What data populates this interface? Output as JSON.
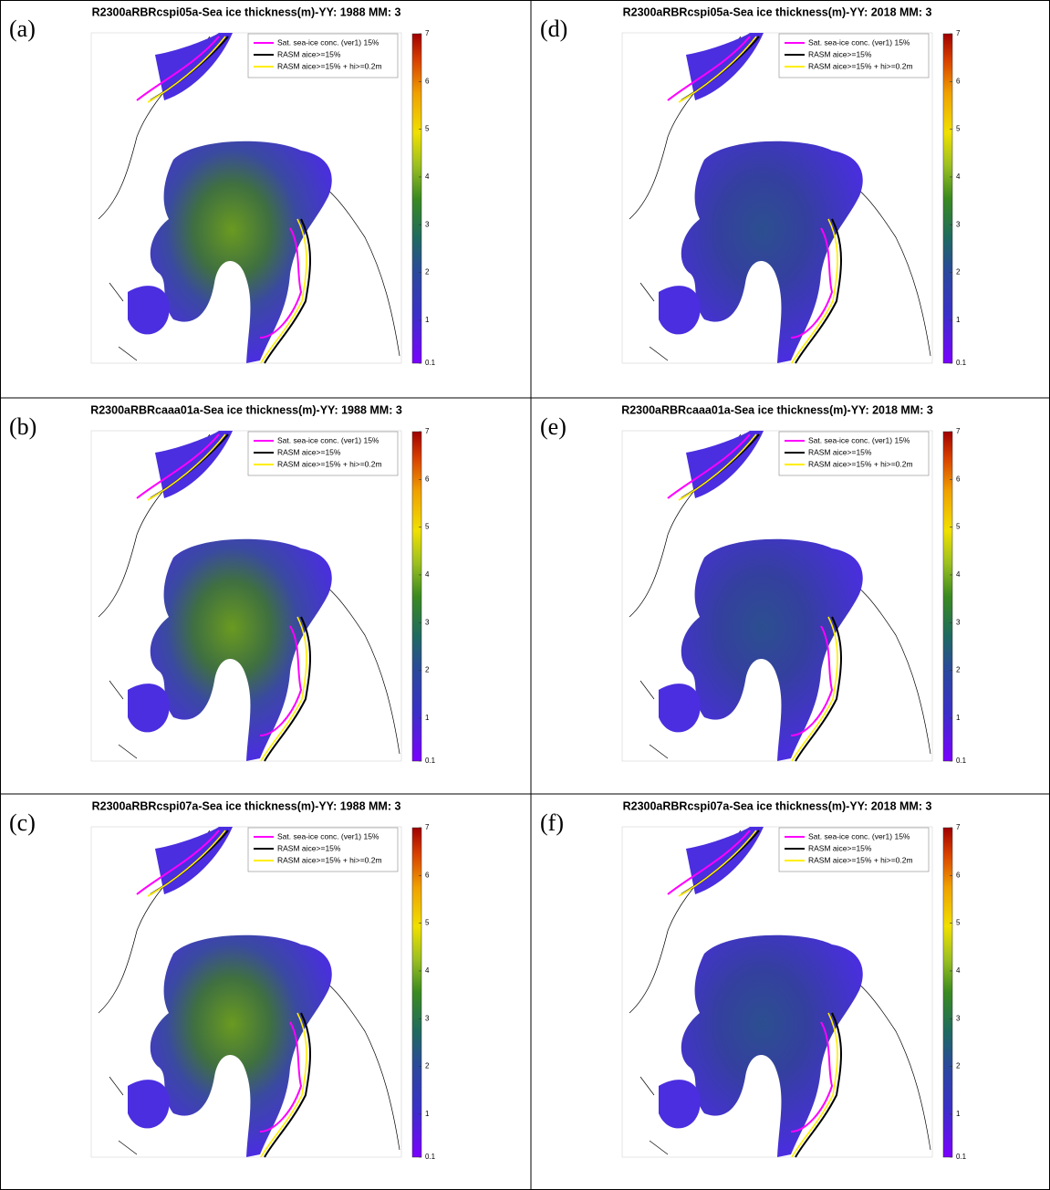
{
  "panels": [
    {
      "label": "(a)",
      "title": "R2300aRBRcspi05a-Sea ice thickness(m)-YY: 1988  MM: 3"
    },
    {
      "label": "(b)",
      "title": "R2300aRBRcaaa01a-Sea ice thickness(m)-YY: 1988  MM: 3"
    },
    {
      "label": "(c)",
      "title": "R2300aRBRcspi07a-Sea ice thickness(m)-YY: 1988  MM: 3"
    },
    {
      "label": "(d)",
      "title": "R2300aRBRcspi05a-Sea ice thickness(m)-YY: 2018  MM: 3"
    },
    {
      "label": "(e)",
      "title": "R2300aRBRcaaa01a-Sea ice thickness(m)-YY: 2018  MM: 3"
    },
    {
      "label": "(f)",
      "title": "R2300aRBRcspi07a-Sea ice thickness(m)-YY: 2018  MM: 3"
    }
  ],
  "legend": [
    {
      "name": "Sat. sea-ice conc. (ver1) 15%",
      "color": "#ff00ff"
    },
    {
      "name": "RASM aice>=15%",
      "color": "#000000"
    },
    {
      "name": "RASM aice>=15% + hi>=0.2m",
      "color": "#ffee00"
    }
  ],
  "colorbar": {
    "lim": [
      0.1,
      7
    ],
    "ticks": [
      0.1,
      1,
      2,
      3,
      4,
      5,
      6,
      7
    ]
  }
}
